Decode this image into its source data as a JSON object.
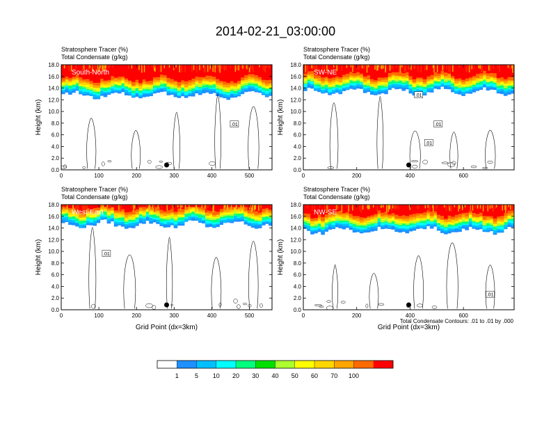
{
  "title": "2014-02-21_03:00:00",
  "footer_note": "Total Condensate Contours: .01 to .01 by .000",
  "chart_data": {
    "type": "filled-contour",
    "colorbar": {
      "levels": [
        "1",
        "5",
        "10",
        "20",
        "30",
        "40",
        "50",
        "60",
        "70",
        "100"
      ],
      "colors": [
        "#ffffff",
        "#1e90ff",
        "#00bfff",
        "#00ffff",
        "#00ff7f",
        "#00e000",
        "#adff2f",
        "#ffff00",
        "#ffd700",
        "#ffa500",
        "#ff6a00",
        "#ff0000"
      ]
    },
    "panels": [
      {
        "name": "south-north",
        "label": "South-North",
        "left_title": "Stratosphere Tracer   (%)",
        "left_subtitle": "Total Condensate   (g/kg)",
        "ylabel": "Height (km)",
        "xlabel": "",
        "xlim": [
          0,
          560
        ],
        "ylim": [
          0,
          18
        ],
        "xticks": [
          0,
          100,
          200,
          300,
          400,
          500
        ],
        "yticks": [
          "0.0",
          "2.0",
          "4.0",
          "6.0",
          "8.0",
          "10.0",
          "12.0",
          "14.0",
          "16.0",
          "18.0"
        ],
        "marker_x": 280,
        "contour_labels": [
          {
            "text": ".01",
            "x": 460,
            "y": 7.8
          }
        ],
        "tracer_base_km": 12.8
      },
      {
        "name": "sw-ne",
        "label": "SW-NE",
        "left_title": "Stratosphere Tracer   (%)",
        "left_subtitle": "Total Condensate   (g/kg)",
        "ylabel": "Height (km)",
        "xlabel": "",
        "xlim": [
          0,
          790
        ],
        "ylim": [
          0,
          18
        ],
        "xticks": [
          0,
          200,
          400,
          600
        ],
        "yticks": [
          "0.0",
          "2.0",
          "4.0",
          "6.0",
          "8.0",
          "10.0",
          "12.0",
          "14.0",
          "16.0",
          "18.0"
        ],
        "marker_x": 395,
        "contour_labels": [
          {
            "text": ".01",
            "x": 432,
            "y": 12.8
          },
          {
            "text": ".01",
            "x": 505,
            "y": 7.8
          },
          {
            "text": ".01",
            "x": 470,
            "y": 4.6
          }
        ],
        "tracer_base_km": 13.4
      },
      {
        "name": "west-east",
        "label": "West-East",
        "left_title": "Stratosphere Tracer   (%)",
        "left_subtitle": "Total Condensate   (g/kg)",
        "ylabel": "Height (km)",
        "xlabel": "Grid Point (dx=3km)",
        "xlim": [
          0,
          560
        ],
        "ylim": [
          0,
          18
        ],
        "xticks": [
          0,
          100,
          200,
          300,
          400,
          500
        ],
        "yticks": [
          "0.0",
          "2.0",
          "4.0",
          "6.0",
          "8.0",
          "10.0",
          "12.0",
          "14.0",
          "16.0",
          "18.0"
        ],
        "marker_x": 280,
        "contour_labels": [
          {
            "text": ".01",
            "x": 120,
            "y": 9.6
          }
        ],
        "tracer_base_km": 14.6
      },
      {
        "name": "nw-se",
        "label": "NW-SE",
        "left_title": "Stratosphere Tracer   (%)",
        "left_subtitle": "Total Condensate   (g/kg)",
        "ylabel": "Height (km)",
        "xlabel": "Grid Point (dx=3km)",
        "xlim": [
          0,
          790
        ],
        "ylim": [
          0,
          18
        ],
        "xticks": [
          0,
          200,
          400,
          600
        ],
        "yticks": [
          "0.0",
          "2.0",
          "4.0",
          "6.0",
          "8.0",
          "10.0",
          "12.0",
          "14.0",
          "16.0",
          "18.0"
        ],
        "marker_x": 395,
        "contour_labels": [
          {
            "text": ".01",
            "x": 700,
            "y": 2.6
          }
        ],
        "tracer_base_km": 13.6
      }
    ]
  }
}
